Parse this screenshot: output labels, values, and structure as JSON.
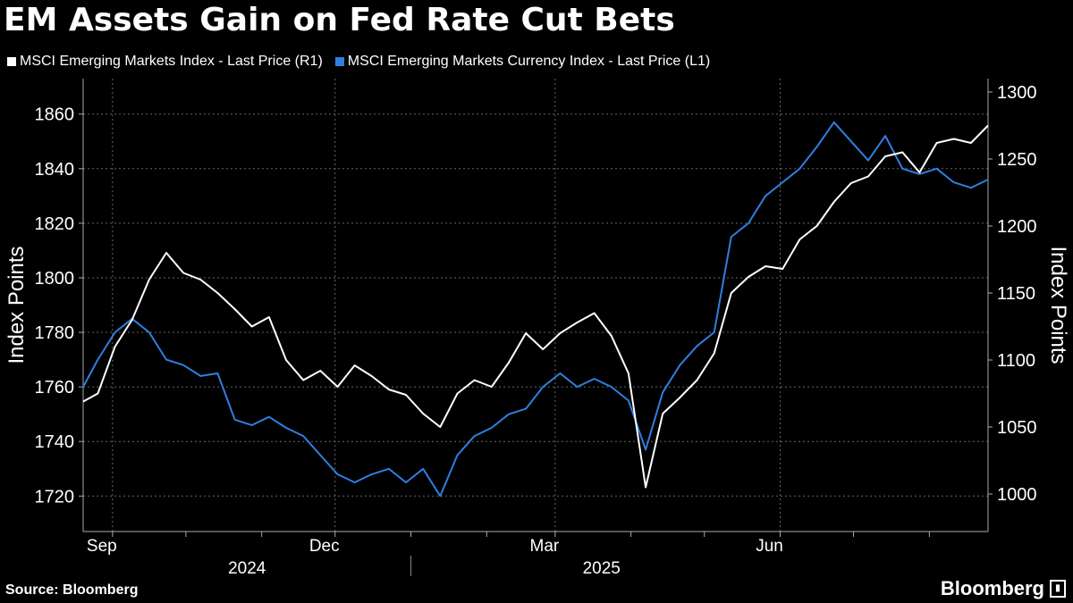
{
  "title": "EM Assets Gain on Fed Rate Cut Bets",
  "legend": [
    {
      "label": "MSCI Emerging Markets Index - Last Price (R1)",
      "color": "#ffffff"
    },
    {
      "label": "MSCI Emerging Markets Currency Index - Last Price (L1)",
      "color": "#2f7fe0"
    }
  ],
  "footer": {
    "source": "Source: Bloomberg",
    "brand": "Bloomberg"
  },
  "chart_data": {
    "type": "line",
    "left_axis": {
      "label": "Index Points",
      "ticks": [
        1720,
        1740,
        1760,
        1780,
        1800,
        1820,
        1840,
        1860
      ],
      "range": [
        1707,
        1873
      ]
    },
    "right_axis": {
      "label": "Index Points",
      "ticks": [
        1000,
        1050,
        1100,
        1150,
        1200,
        1250,
        1300
      ],
      "range": [
        972,
        1310
      ]
    },
    "x_axis": {
      "month_ticks": [
        "Sep",
        "Dec",
        "Mar",
        "Jun"
      ],
      "year_labels": [
        "2024",
        "2025"
      ],
      "range": [
        "2024-08-20",
        "2025-08-25"
      ]
    },
    "grid": true,
    "series": [
      {
        "name": "MSCI Emerging Markets Index - Last Price (R1)",
        "axis": "right",
        "color": "#ffffff",
        "points": [
          [
            "2024-08-20",
            1069
          ],
          [
            "2024-08-26",
            1075
          ],
          [
            "2024-09-02",
            1110
          ],
          [
            "2024-09-09",
            1130
          ],
          [
            "2024-09-16",
            1160
          ],
          [
            "2024-09-23",
            1180
          ],
          [
            "2024-09-30",
            1165
          ],
          [
            "2024-10-07",
            1160
          ],
          [
            "2024-10-14",
            1150
          ],
          [
            "2024-10-21",
            1138
          ],
          [
            "2024-10-28",
            1125
          ],
          [
            "2024-11-04",
            1132
          ],
          [
            "2024-11-11",
            1100
          ],
          [
            "2024-11-18",
            1085
          ],
          [
            "2024-11-25",
            1092
          ],
          [
            "2024-12-02",
            1080
          ],
          [
            "2024-12-09",
            1096
          ],
          [
            "2024-12-16",
            1088
          ],
          [
            "2024-12-23",
            1078
          ],
          [
            "2024-12-30",
            1074
          ],
          [
            "2025-01-06",
            1060
          ],
          [
            "2025-01-13",
            1050
          ],
          [
            "2025-01-20",
            1075
          ],
          [
            "2025-01-27",
            1085
          ],
          [
            "2025-02-03",
            1080
          ],
          [
            "2025-02-10",
            1098
          ],
          [
            "2025-02-17",
            1120
          ],
          [
            "2025-02-24",
            1108
          ],
          [
            "2025-03-03",
            1120
          ],
          [
            "2025-03-10",
            1128
          ],
          [
            "2025-03-17",
            1135
          ],
          [
            "2025-03-24",
            1118
          ],
          [
            "2025-03-31",
            1090
          ],
          [
            "2025-04-07",
            1005
          ],
          [
            "2025-04-14",
            1060
          ],
          [
            "2025-04-21",
            1072
          ],
          [
            "2025-04-28",
            1085
          ],
          [
            "2025-05-05",
            1105
          ],
          [
            "2025-05-12",
            1150
          ],
          [
            "2025-05-19",
            1162
          ],
          [
            "2025-05-26",
            1170
          ],
          [
            "2025-06-02",
            1168
          ],
          [
            "2025-06-09",
            1190
          ],
          [
            "2025-06-16",
            1200
          ],
          [
            "2025-06-23",
            1218
          ],
          [
            "2025-06-30",
            1232
          ],
          [
            "2025-07-07",
            1237
          ],
          [
            "2025-07-14",
            1252
          ],
          [
            "2025-07-21",
            1255
          ],
          [
            "2025-07-28",
            1240
          ],
          [
            "2025-08-04",
            1262
          ],
          [
            "2025-08-11",
            1265
          ],
          [
            "2025-08-18",
            1262
          ],
          [
            "2025-08-25",
            1275
          ]
        ]
      },
      {
        "name": "MSCI Emerging Markets Currency Index - Last Price (L1)",
        "axis": "left",
        "color": "#2f7fe0",
        "points": [
          [
            "2024-08-20",
            1760
          ],
          [
            "2024-08-26",
            1770
          ],
          [
            "2024-09-02",
            1780
          ],
          [
            "2024-09-09",
            1785
          ],
          [
            "2024-09-16",
            1780
          ],
          [
            "2024-09-23",
            1770
          ],
          [
            "2024-09-30",
            1768
          ],
          [
            "2024-10-07",
            1764
          ],
          [
            "2024-10-14",
            1765
          ],
          [
            "2024-10-21",
            1748
          ],
          [
            "2024-10-28",
            1746
          ],
          [
            "2024-11-04",
            1749
          ],
          [
            "2024-11-11",
            1745
          ],
          [
            "2024-11-18",
            1742
          ],
          [
            "2024-11-25",
            1735
          ],
          [
            "2024-12-02",
            1728
          ],
          [
            "2024-12-09",
            1725
          ],
          [
            "2024-12-16",
            1728
          ],
          [
            "2024-12-23",
            1730
          ],
          [
            "2024-12-30",
            1725
          ],
          [
            "2025-01-06",
            1730
          ],
          [
            "2025-01-13",
            1720
          ],
          [
            "2025-01-20",
            1735
          ],
          [
            "2025-01-27",
            1742
          ],
          [
            "2025-02-03",
            1745
          ],
          [
            "2025-02-10",
            1750
          ],
          [
            "2025-02-17",
            1752
          ],
          [
            "2025-02-24",
            1760
          ],
          [
            "2025-03-03",
            1765
          ],
          [
            "2025-03-10",
            1760
          ],
          [
            "2025-03-17",
            1763
          ],
          [
            "2025-03-24",
            1760
          ],
          [
            "2025-03-31",
            1755
          ],
          [
            "2025-04-07",
            1737
          ],
          [
            "2025-04-14",
            1758
          ],
          [
            "2025-04-21",
            1768
          ],
          [
            "2025-04-28",
            1775
          ],
          [
            "2025-05-05",
            1780
          ],
          [
            "2025-05-12",
            1815
          ],
          [
            "2025-05-19",
            1820
          ],
          [
            "2025-05-26",
            1830
          ],
          [
            "2025-06-02",
            1835
          ],
          [
            "2025-06-09",
            1840
          ],
          [
            "2025-06-16",
            1848
          ],
          [
            "2025-06-23",
            1857
          ],
          [
            "2025-06-30",
            1850
          ],
          [
            "2025-07-07",
            1843
          ],
          [
            "2025-07-14",
            1852
          ],
          [
            "2025-07-21",
            1840
          ],
          [
            "2025-07-28",
            1838
          ],
          [
            "2025-08-04",
            1840
          ],
          [
            "2025-08-11",
            1835
          ],
          [
            "2025-08-18",
            1833
          ],
          [
            "2025-08-25",
            1836
          ]
        ]
      }
    ]
  }
}
